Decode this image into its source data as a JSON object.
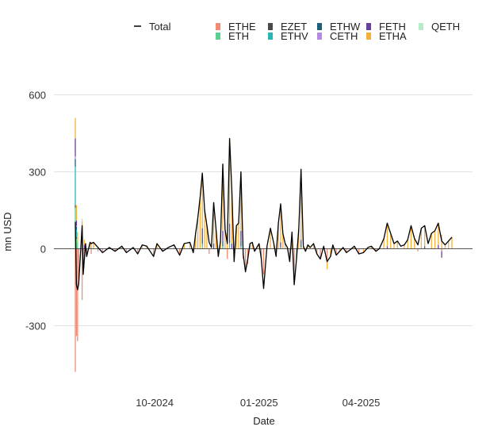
{
  "chart_data": {
    "type": "bar",
    "title": "",
    "xlabel": "Date",
    "ylabel": "mn USD",
    "ylim": [
      -500,
      650
    ],
    "yticks": [
      -300,
      0,
      300,
      600
    ],
    "xticks": [
      {
        "date": "2024-10-01",
        "label": "10-2024"
      },
      {
        "date": "2025-01-01",
        "label": "01-2025"
      },
      {
        "date": "2025-04-01",
        "label": "04-2025"
      }
    ],
    "x_range": [
      "2024-07-23",
      "2025-06-20"
    ],
    "grid": "horizontal",
    "legend_position": "top",
    "total_series": {
      "name": "Total",
      "color": "#000000",
      "points": [
        [
          "2024-07-23",
          105
        ],
        [
          "2024-07-24",
          -140
        ],
        [
          "2024-07-25",
          -160
        ],
        [
          "2024-07-26",
          -135
        ],
        [
          "2024-07-29",
          90
        ],
        [
          "2024-07-30",
          -100
        ],
        [
          "2024-07-31",
          -40
        ],
        [
          "2024-08-01",
          20
        ],
        [
          "2024-08-02",
          -30
        ],
        [
          "2024-08-05",
          25
        ],
        [
          "2024-08-06",
          20
        ],
        [
          "2024-08-08",
          25
        ],
        [
          "2024-08-12",
          5
        ],
        [
          "2024-08-16",
          -15
        ],
        [
          "2024-08-22",
          5
        ],
        [
          "2024-08-27",
          -10
        ],
        [
          "2024-09-02",
          10
        ],
        [
          "2024-09-06",
          -15
        ],
        [
          "2024-09-12",
          5
        ],
        [
          "2024-09-16",
          -20
        ],
        [
          "2024-09-20",
          15
        ],
        [
          "2024-09-24",
          10
        ],
        [
          "2024-09-30",
          -30
        ],
        [
          "2024-10-03",
          20
        ],
        [
          "2024-10-08",
          -10
        ],
        [
          "2024-10-13",
          5
        ],
        [
          "2024-10-18",
          15
        ],
        [
          "2024-10-23",
          -25
        ],
        [
          "2024-10-27",
          20
        ],
        [
          "2024-11-01",
          25
        ],
        [
          "2024-11-04",
          -15
        ],
        [
          "2024-11-06",
          60
        ],
        [
          "2024-11-08",
          120
        ],
        [
          "2024-11-10",
          200
        ],
        [
          "2024-11-12",
          295
        ],
        [
          "2024-11-14",
          150
        ],
        [
          "2024-11-16",
          90
        ],
        [
          "2024-11-18",
          25
        ],
        [
          "2024-11-20",
          5
        ],
        [
          "2024-11-22",
          180
        ],
        [
          "2024-11-24",
          80
        ],
        [
          "2024-11-26",
          -30
        ],
        [
          "2024-11-28",
          30
        ],
        [
          "2024-11-30",
          330
        ],
        [
          "2024-12-02",
          75
        ],
        [
          "2024-12-04",
          20
        ],
        [
          "2024-12-06",
          430
        ],
        [
          "2024-12-08",
          230
        ],
        [
          "2024-12-10",
          -50
        ],
        [
          "2024-12-12",
          90
        ],
        [
          "2024-12-14",
          100
        ],
        [
          "2024-12-16",
          300
        ],
        [
          "2024-12-18",
          -20
        ],
        [
          "2024-12-20",
          -90
        ],
        [
          "2024-12-22",
          -40
        ],
        [
          "2024-12-24",
          20
        ],
        [
          "2024-12-26",
          25
        ],
        [
          "2024-12-28",
          -10
        ],
        [
          "2025-01-01",
          20
        ],
        [
          "2025-01-03",
          -40
        ],
        [
          "2025-01-05",
          -155
        ],
        [
          "2025-01-08",
          10
        ],
        [
          "2025-01-11",
          80
        ],
        [
          "2025-01-14",
          20
        ],
        [
          "2025-01-16",
          -30
        ],
        [
          "2025-01-18",
          100
        ],
        [
          "2025-01-20",
          175
        ],
        [
          "2025-01-22",
          60
        ],
        [
          "2025-01-24",
          20
        ],
        [
          "2025-01-26",
          5
        ],
        [
          "2025-01-28",
          -50
        ],
        [
          "2025-01-30",
          65
        ],
        [
          "2025-02-01",
          -140
        ],
        [
          "2025-02-03",
          -40
        ],
        [
          "2025-02-05",
          80
        ],
        [
          "2025-02-07",
          310
        ],
        [
          "2025-02-09",
          10
        ],
        [
          "2025-02-11",
          -10
        ],
        [
          "2025-02-13",
          15
        ],
        [
          "2025-02-15",
          5
        ],
        [
          "2025-02-18",
          20
        ],
        [
          "2025-02-21",
          -20
        ],
        [
          "2025-02-24",
          -40
        ],
        [
          "2025-02-27",
          10
        ],
        [
          "2025-03-02",
          -50
        ],
        [
          "2025-03-05",
          -30
        ],
        [
          "2025-03-07",
          15
        ],
        [
          "2025-03-10",
          -25
        ],
        [
          "2025-03-13",
          -10
        ],
        [
          "2025-03-16",
          5
        ],
        [
          "2025-03-19",
          -15
        ],
        [
          "2025-03-22",
          -5
        ],
        [
          "2025-03-26",
          10
        ],
        [
          "2025-03-30",
          -20
        ],
        [
          "2025-04-03",
          -15
        ],
        [
          "2025-04-07",
          5
        ],
        [
          "2025-04-10",
          10
        ],
        [
          "2025-04-14",
          -10
        ],
        [
          "2025-04-17",
          0
        ],
        [
          "2025-04-21",
          40
        ],
        [
          "2025-04-24",
          100
        ],
        [
          "2025-04-27",
          60
        ],
        [
          "2025-04-30",
          20
        ],
        [
          "2025-05-03",
          30
        ],
        [
          "2025-05-06",
          10
        ],
        [
          "2025-05-09",
          15
        ],
        [
          "2025-05-12",
          35
        ],
        [
          "2025-05-15",
          90
        ],
        [
          "2025-05-18",
          40
        ],
        [
          "2025-05-21",
          15
        ],
        [
          "2025-05-24",
          80
        ],
        [
          "2025-05-27",
          90
        ],
        [
          "2025-05-30",
          20
        ],
        [
          "2025-06-02",
          60
        ],
        [
          "2025-06-05",
          70
        ],
        [
          "2025-06-08",
          100
        ],
        [
          "2025-06-11",
          30
        ],
        [
          "2025-06-14",
          15
        ],
        [
          "2025-06-17",
          30
        ],
        [
          "2025-06-20",
          45
        ]
      ]
    },
    "series": [
      {
        "name": "ETHE",
        "color": "#f08c74",
        "values": [
          [
            "2024-07-23",
            -480
          ],
          [
            "2024-07-24",
            -340
          ],
          [
            "2024-07-25",
            -360
          ],
          [
            "2024-07-26",
            -120
          ],
          [
            "2024-07-29",
            -200
          ],
          [
            "2024-07-30",
            -60
          ],
          [
            "2024-07-31",
            -40
          ],
          [
            "2024-08-02",
            -30
          ],
          [
            "2024-08-06",
            -20
          ],
          [
            "2024-08-12",
            -10
          ],
          [
            "2024-08-16",
            -15
          ],
          [
            "2024-08-27",
            -10
          ],
          [
            "2024-09-06",
            -15
          ],
          [
            "2024-09-16",
            -20
          ],
          [
            "2024-09-30",
            -30
          ],
          [
            "2024-10-08",
            -10
          ],
          [
            "2024-10-23",
            -25
          ],
          [
            "2024-11-04",
            -15
          ],
          [
            "2024-11-18",
            -20
          ],
          [
            "2024-11-26",
            -30
          ],
          [
            "2024-12-04",
            -40
          ],
          [
            "2024-12-10",
            -50
          ],
          [
            "2024-12-18",
            -40
          ],
          [
            "2024-12-20",
            -90
          ],
          [
            "2024-12-22",
            -60
          ],
          [
            "2025-01-03",
            -40
          ],
          [
            "2025-01-05",
            -100
          ],
          [
            "2025-01-16",
            -30
          ],
          [
            "2025-01-28",
            -50
          ],
          [
            "2025-02-01",
            -140
          ],
          [
            "2025-02-03",
            -40
          ],
          [
            "2025-02-21",
            -20
          ],
          [
            "2025-02-24",
            -40
          ],
          [
            "2025-03-02",
            -50
          ],
          [
            "2025-03-10",
            -25
          ],
          [
            "2025-03-19",
            -15
          ],
          [
            "2025-03-30",
            -20
          ],
          [
            "2025-04-14",
            -10
          ],
          [
            "2025-05-21",
            -10
          ],
          [
            "2025-06-11",
            -10
          ]
        ]
      },
      {
        "name": "ETH",
        "color": "#5cd08e",
        "values": [
          [
            "2024-07-23",
            160
          ],
          [
            "2024-07-24",
            40
          ],
          [
            "2024-07-25",
            25
          ],
          [
            "2024-07-29",
            15
          ],
          [
            "2024-08-06",
            5
          ],
          [
            "2024-11-12",
            10
          ],
          [
            "2024-12-06",
            8
          ],
          [
            "2025-02-07",
            5
          ]
        ]
      },
      {
        "name": "EZET",
        "color": "#4a4a4a",
        "values": [
          [
            "2024-07-23",
            10
          ],
          [
            "2024-07-24",
            5
          ]
        ]
      },
      {
        "name": "ETHV",
        "color": "#29b6b6",
        "values": [
          [
            "2024-07-23",
            150
          ],
          [
            "2024-07-24",
            30
          ],
          [
            "2024-07-29",
            10
          ],
          [
            "2024-11-12",
            10
          ],
          [
            "2024-11-30",
            10
          ],
          [
            "2024-12-06",
            15
          ],
          [
            "2024-12-16",
            10
          ],
          [
            "2025-01-20",
            5
          ]
        ]
      },
      {
        "name": "ETHW",
        "color": "#1f5f7a",
        "values": [
          [
            "2024-07-23",
            30
          ],
          [
            "2024-07-24",
            10
          ],
          [
            "2024-07-29",
            8
          ],
          [
            "2024-11-12",
            20
          ],
          [
            "2024-11-30",
            20
          ],
          [
            "2024-12-06",
            15
          ],
          [
            "2024-12-16",
            20
          ],
          [
            "2025-02-07",
            10
          ]
        ]
      },
      {
        "name": "CETH",
        "color": "#b48be0",
        "values": [
          [
            "2024-07-23",
            10
          ],
          [
            "2024-07-24",
            5
          ]
        ]
      },
      {
        "name": "FETH",
        "color": "#6a3e9e",
        "values": [
          [
            "2024-07-23",
            70
          ],
          [
            "2024-07-24",
            20
          ],
          [
            "2024-07-29",
            25
          ],
          [
            "2024-07-31",
            15
          ],
          [
            "2024-11-12",
            40
          ],
          [
            "2024-11-22",
            20
          ],
          [
            "2024-11-30",
            40
          ],
          [
            "2024-12-06",
            60
          ],
          [
            "2024-12-08",
            20
          ],
          [
            "2024-12-16",
            40
          ],
          [
            "2025-01-20",
            20
          ],
          [
            "2025-02-07",
            20
          ],
          [
            "2025-04-24",
            10
          ],
          [
            "2025-05-27",
            10
          ],
          [
            "2025-06-08",
            15
          ],
          [
            "2025-06-11",
            -25
          ]
        ]
      },
      {
        "name": "ETHA",
        "color": "#f4b03c",
        "values": [
          [
            "2024-07-23",
            80
          ],
          [
            "2024-07-24",
            60
          ],
          [
            "2024-07-25",
            40
          ],
          [
            "2024-07-29",
            50
          ],
          [
            "2024-07-31",
            20
          ],
          [
            "2024-08-01",
            20
          ],
          [
            "2024-08-05",
            25
          ],
          [
            "2024-08-06",
            20
          ],
          [
            "2024-08-08",
            25
          ],
          [
            "2024-08-22",
            5
          ],
          [
            "2024-09-02",
            10
          ],
          [
            "2024-09-12",
            5
          ],
          [
            "2024-09-20",
            15
          ],
          [
            "2024-09-24",
            10
          ],
          [
            "2024-10-03",
            20
          ],
          [
            "2024-10-18",
            15
          ],
          [
            "2024-10-27",
            20
          ],
          [
            "2024-11-01",
            25
          ],
          [
            "2024-11-06",
            60
          ],
          [
            "2024-11-08",
            120
          ],
          [
            "2024-11-10",
            200
          ],
          [
            "2024-11-12",
            215
          ],
          [
            "2024-11-14",
            150
          ],
          [
            "2024-11-16",
            90
          ],
          [
            "2024-11-22",
            160
          ],
          [
            "2024-11-24",
            80
          ],
          [
            "2024-11-28",
            30
          ],
          [
            "2024-11-30",
            260
          ],
          [
            "2024-12-02",
            75
          ],
          [
            "2024-12-04",
            60
          ],
          [
            "2024-12-06",
            330
          ],
          [
            "2024-12-08",
            210
          ],
          [
            "2024-12-12",
            90
          ],
          [
            "2024-12-14",
            100
          ],
          [
            "2024-12-16",
            230
          ],
          [
            "2024-12-24",
            20
          ],
          [
            "2024-12-26",
            25
          ],
          [
            "2025-01-01",
            20
          ],
          [
            "2025-01-08",
            10
          ],
          [
            "2025-01-11",
            80
          ],
          [
            "2025-01-14",
            20
          ],
          [
            "2025-01-18",
            100
          ],
          [
            "2025-01-20",
            150
          ],
          [
            "2025-01-22",
            60
          ],
          [
            "2025-01-24",
            20
          ],
          [
            "2025-01-30",
            65
          ],
          [
            "2025-02-05",
            80
          ],
          [
            "2025-02-07",
            270
          ],
          [
            "2025-02-09",
            10
          ],
          [
            "2025-02-13",
            15
          ],
          [
            "2025-02-18",
            20
          ],
          [
            "2025-02-27",
            10
          ],
          [
            "2025-03-02",
            -30
          ],
          [
            "2025-03-05",
            -30
          ],
          [
            "2025-03-07",
            15
          ],
          [
            "2025-03-13",
            -10
          ],
          [
            "2025-03-26",
            10
          ],
          [
            "2025-04-03",
            -15
          ],
          [
            "2025-04-10",
            10
          ],
          [
            "2025-04-21",
            40
          ],
          [
            "2025-04-24",
            90
          ],
          [
            "2025-04-27",
            60
          ],
          [
            "2025-04-30",
            20
          ],
          [
            "2025-05-03",
            30
          ],
          [
            "2025-05-09",
            15
          ],
          [
            "2025-05-12",
            35
          ],
          [
            "2025-05-15",
            90
          ],
          [
            "2025-05-18",
            40
          ],
          [
            "2025-05-24",
            80
          ],
          [
            "2025-05-27",
            80
          ],
          [
            "2025-06-02",
            60
          ],
          [
            "2025-06-05",
            70
          ],
          [
            "2025-06-08",
            85
          ],
          [
            "2025-06-11",
            55
          ],
          [
            "2025-06-14",
            15
          ],
          [
            "2025-06-17",
            30
          ],
          [
            "2025-06-20",
            45
          ]
        ]
      },
      {
        "name": "QETH",
        "color": "#b6ecc9",
        "values": [
          [
            "2024-07-29",
            10
          ]
        ]
      }
    ]
  }
}
